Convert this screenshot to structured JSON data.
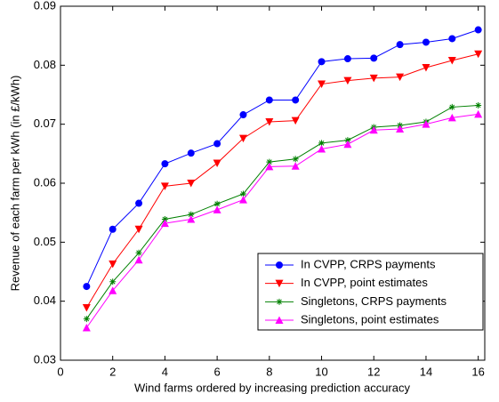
{
  "chart_data": {
    "type": "line",
    "x_label": "Wind farms ordered by increasing prediction accuracy",
    "y_label": "Revenue of each farm per kWh (in £/kWh)",
    "x": [
      1,
      2,
      3,
      4,
      5,
      6,
      7,
      8,
      9,
      10,
      11,
      12,
      13,
      14,
      15,
      16
    ],
    "series": [
      {
        "name": "In CVPP, CRPS payments",
        "color": "#0000ff",
        "marker": "circle",
        "values": [
          0.0425,
          0.0522,
          0.0566,
          0.0633,
          0.0651,
          0.0667,
          0.0716,
          0.0741,
          0.0741,
          0.0806,
          0.0811,
          0.0812,
          0.0835,
          0.0839,
          0.0845,
          0.086
        ]
      },
      {
        "name": "In CVPP, point estimates",
        "color": "#ff0000",
        "marker": "triangle-down",
        "values": [
          0.0389,
          0.0463,
          0.0522,
          0.0595,
          0.06,
          0.0634,
          0.0676,
          0.0704,
          0.0706,
          0.0768,
          0.0774,
          0.0778,
          0.078,
          0.0796,
          0.0808,
          0.0819
        ]
      },
      {
        "name": "Singletons, CRPS payments",
        "color": "#008000",
        "marker": "asterisk",
        "values": [
          0.037,
          0.0433,
          0.0482,
          0.0539,
          0.0547,
          0.0565,
          0.0582,
          0.0636,
          0.0641,
          0.0668,
          0.0673,
          0.0695,
          0.0698,
          0.0704,
          0.0729,
          0.0732
        ]
      },
      {
        "name": "Singletons, point estimates",
        "color": "#ff00ff",
        "marker": "triangle-up",
        "values": [
          0.0355,
          0.0418,
          0.047,
          0.0532,
          0.0539,
          0.0555,
          0.0572,
          0.0628,
          0.0629,
          0.0658,
          0.0666,
          0.069,
          0.0692,
          0.07,
          0.0711,
          0.0717
        ]
      }
    ],
    "xlim": [
      0,
      16.25
    ],
    "xticks": [
      0,
      2,
      4,
      6,
      8,
      10,
      12,
      14,
      16
    ],
    "ylim": [
      0.03,
      0.09
    ],
    "yticks": [
      0.03,
      0.04,
      0.05,
      0.06,
      0.07,
      0.08,
      0.09
    ],
    "grid": false,
    "legend_position": "lower-right"
  }
}
